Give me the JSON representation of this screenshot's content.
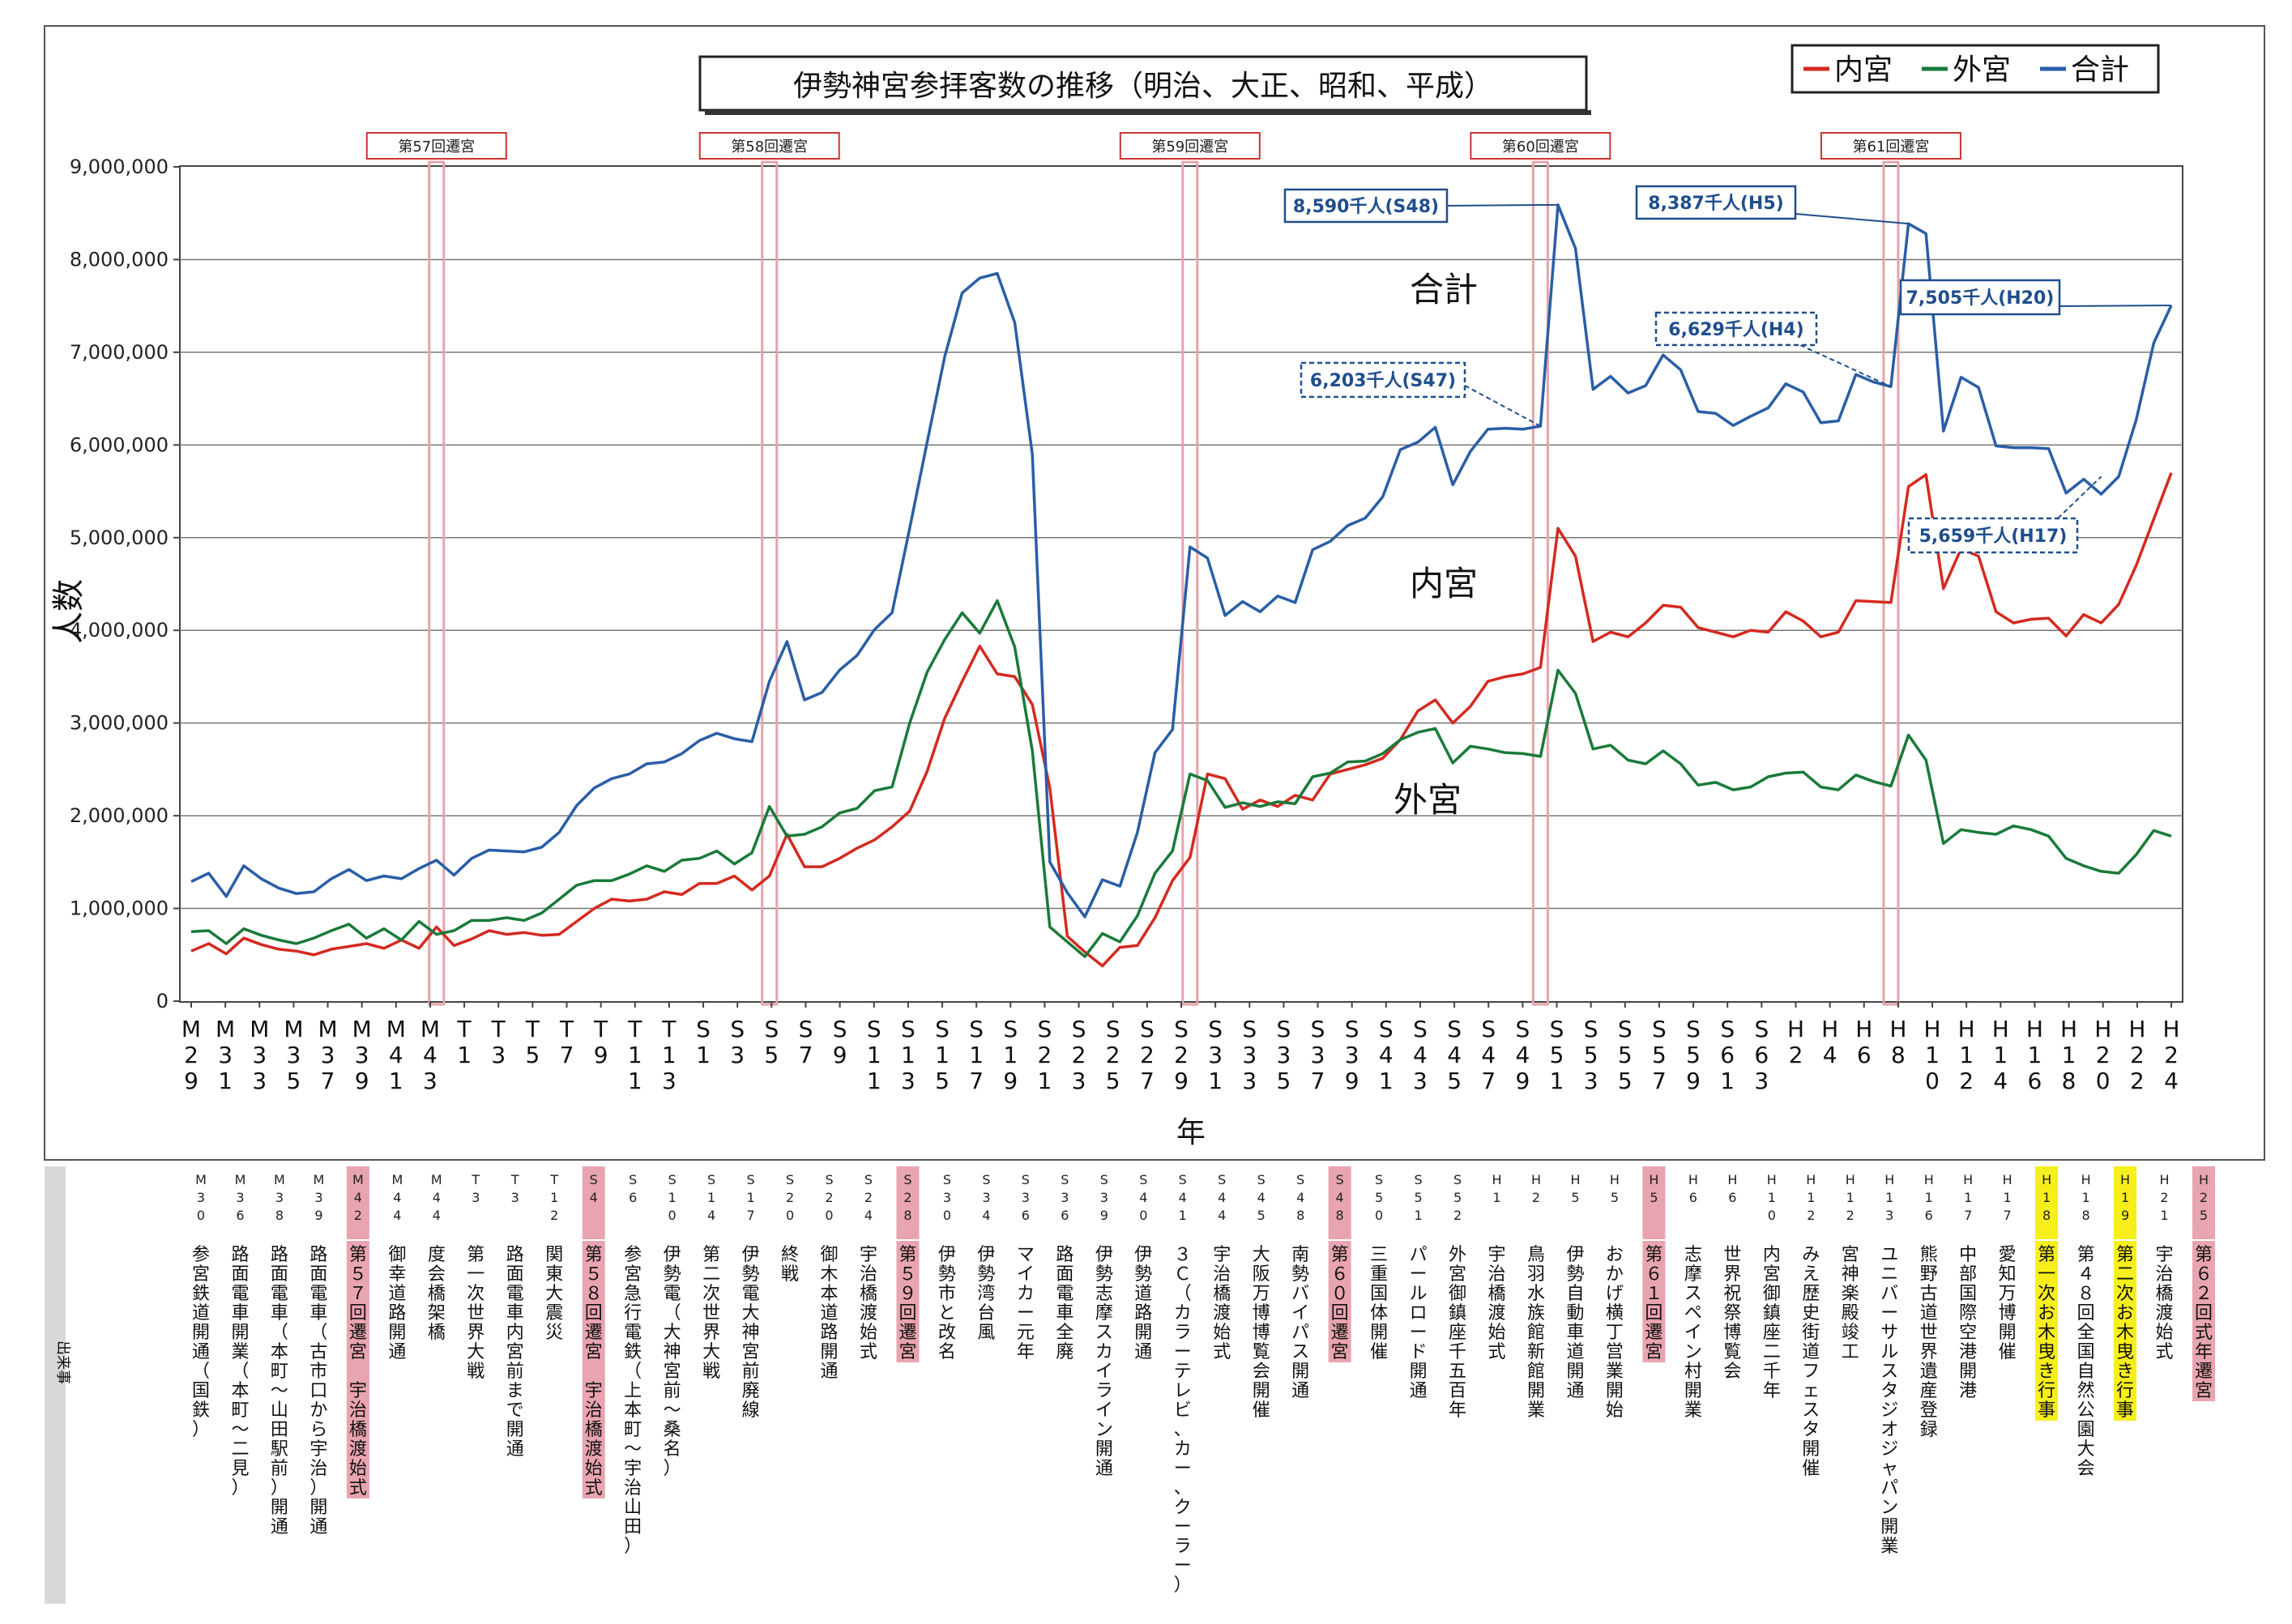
{
  "chart_data": {
    "type": "line",
    "title": "伊勢神宮参拝客数の推移（明治、大正、昭和、平成）",
    "xlabel": "年",
    "ylabel": "人数",
    "ylim": [
      0,
      9000000
    ],
    "yticks": [
      "0",
      "1,000,000",
      "2,000,000",
      "3,000,000",
      "4,000,000",
      "5,000,000",
      "6,000,000",
      "7,000,000",
      "8,000,000",
      "9,000,000"
    ],
    "legend_position": "top-right",
    "grid": true,
    "x_labels": [
      "M29",
      "M31",
      "M33",
      "M35",
      "M37",
      "M39",
      "M41",
      "M43",
      "T1",
      "T3",
      "T5",
      "T7",
      "T9",
      "T11",
      "T13",
      "S1",
      "S3",
      "S5",
      "S7",
      "S9",
      "S11",
      "S13",
      "S15",
      "S17",
      "S19",
      "S21",
      "S23",
      "S25",
      "S27",
      "S29",
      "S31",
      "S33",
      "S35",
      "S37",
      "S39",
      "S41",
      "S43",
      "S45",
      "S47",
      "S49",
      "S51",
      "S53",
      "S55",
      "S57",
      "S59",
      "S61",
      "S63",
      "H2",
      "H4",
      "H6",
      "H8",
      "H10",
      "H12",
      "H14",
      "H16",
      "H18",
      "H20",
      "H22",
      "H24"
    ],
    "series": [
      {
        "name": "内宮",
        "color": "#d42a20",
        "label": "内宮",
        "values": [
          540000,
          620000,
          510000,
          680000,
          610000,
          560000,
          540000,
          500000,
          560000,
          590000,
          620000,
          570000,
          660000,
          570000,
          800000,
          600000,
          670000,
          760000,
          720000,
          740000,
          710000,
          720000,
          860000,
          1000000,
          1100000,
          1080000,
          1100000,
          1180000,
          1150000,
          1270000,
          1270000,
          1350000,
          1200000,
          1350000,
          1800000,
          1450000,
          1450000,
          1540000,
          1650000,
          1740000,
          1880000,
          2050000,
          2480000,
          3050000,
          3450000,
          3830000,
          3530000,
          3500000,
          3200000,
          2300000,
          700000,
          530000,
          380000,
          580000,
          600000,
          900000,
          1300000,
          1550000,
          2450000,
          2400000,
          2070000,
          2170000,
          2100000,
          2220000,
          2170000,
          2450000,
          2500000,
          2550000,
          2620000,
          2820000,
          3130000,
          3250000,
          3000000,
          3180000,
          3450000,
          3500000,
          3530000,
          3600000,
          5100000,
          4800000,
          3880000,
          3980000,
          3930000,
          4080000,
          4270000,
          4250000,
          4030000,
          3980000,
          3930000,
          4000000,
          3980000,
          4200000,
          4100000,
          3930000,
          3980000,
          4320000,
          4310000,
          4300000,
          5550000,
          5680000,
          4450000,
          4880000,
          4800000,
          4200000,
          4080000,
          4120000,
          4130000,
          3940000,
          4170000,
          4080000,
          4280000,
          4700000,
          5200000,
          5700000
        ]
      },
      {
        "name": "外宮",
        "color": "#1a7a3a",
        "label": "外宮",
        "values": [
          750000,
          760000,
          620000,
          780000,
          710000,
          660000,
          620000,
          680000,
          760000,
          830000,
          680000,
          780000,
          660000,
          860000,
          720000,
          760000,
          870000,
          870000,
          900000,
          870000,
          950000,
          1100000,
          1250000,
          1300000,
          1300000,
          1370000,
          1460000,
          1400000,
          1520000,
          1540000,
          1620000,
          1480000,
          1600000,
          2100000,
          1780000,
          1800000,
          1880000,
          2030000,
          2080000,
          2270000,
          2310000,
          3000000,
          3550000,
          3900000,
          4190000,
          3970000,
          4320000,
          3820000,
          2700000,
          800000,
          640000,
          480000,
          730000,
          640000,
          920000,
          1380000,
          1620000,
          2450000,
          2380000,
          2090000,
          2140000,
          2100000,
          2150000,
          2130000,
          2420000,
          2460000,
          2580000,
          2590000,
          2670000,
          2820000,
          2900000,
          2940000,
          2570000,
          2750000,
          2720000,
          2680000,
          2670000,
          2640000,
          3570000,
          3320000,
          2720000,
          2760000,
          2600000,
          2560000,
          2700000,
          2560000,
          2330000,
          2360000,
          2280000,
          2310000,
          2420000,
          2460000,
          2470000,
          2310000,
          2280000,
          2440000,
          2370000,
          2320000,
          2870000,
          2600000,
          1700000,
          1850000,
          1820000,
          1800000,
          1890000,
          1850000,
          1780000,
          1540000,
          1460000,
          1400000,
          1380000,
          1580000,
          1840000,
          1780000
        ]
      },
      {
        "name": "合計",
        "color": "#2a5ea6",
        "label": "合計",
        "values": [
          1290000,
          1380000,
          1130000,
          1460000,
          1320000,
          1220000,
          1160000,
          1180000,
          1320000,
          1420000,
          1300000,
          1350000,
          1320000,
          1430000,
          1520000,
          1360000,
          1540000,
          1630000,
          1620000,
          1610000,
          1660000,
          1820000,
          2110000,
          2300000,
          2400000,
          2450000,
          2560000,
          2580000,
          2670000,
          2810000,
          2890000,
          2830000,
          2800000,
          3450000,
          3880000,
          3250000,
          3330000,
          3570000,
          3730000,
          4010000,
          4190000,
          5100000,
          6030000,
          6950000,
          7640000,
          7800000,
          7850000,
          7320000,
          5900000,
          1500000,
          1170000,
          910000,
          1310000,
          1240000,
          1820000,
          2680000,
          2930000,
          4900000,
          4780000,
          4160000,
          4310000,
          4200000,
          4370000,
          4300000,
          4870000,
          4960000,
          5130000,
          5210000,
          5440000,
          5950000,
          6030000,
          6190000,
          5570000,
          5930000,
          6170000,
          6180000,
          6170000,
          6203000,
          8590000,
          8120000,
          6600000,
          6740000,
          6560000,
          6640000,
          6970000,
          6810000,
          6360000,
          6340000,
          6210000,
          6310000,
          6400000,
          6660000,
          6570000,
          6240000,
          6260000,
          6760000,
          6680000,
          6629000,
          8387000,
          8280000,
          6150000,
          6730000,
          6620000,
          5990000,
          5970000,
          5970000,
          5960000,
          5480000,
          5630000,
          5470000,
          5659000,
          6270000,
          7100000,
          7505000
        ]
      }
    ],
    "series_labels": {
      "total": "合計",
      "naiku": "内宮",
      "geku": "外宮"
    },
    "annotations": {
      "callout_1": "8,590千人(S48)",
      "callout_2": "8,387千人(H5)",
      "callout_3": "7,505千人(H20)",
      "callout_4": "6,629千人(H4)",
      "callout_5": "6,203千人(S47)",
      "callout_6": "5,659千人(H17)"
    },
    "sengu": [
      {
        "label": "第57回遷宮",
        "index": 14
      },
      {
        "label": "第58回遷宮",
        "index": 33
      },
      {
        "label": "第59回遷宮",
        "index": 57
      },
      {
        "label": "第60回遷宮",
        "index": 77
      },
      {
        "label": "第61回遷宮",
        "index": 97
      }
    ]
  },
  "events": {
    "section_label": "出来事",
    "items": [
      {
        "year": "M30",
        "text": "参宮鉄道開通（国鉄）",
        "highlight": ""
      },
      {
        "year": "M36",
        "text": "路面電車開業（本町〜二見）",
        "highlight": ""
      },
      {
        "year": "M38",
        "text": "路面電車（本町〜山田駅前）開通",
        "highlight": ""
      },
      {
        "year": "M39",
        "text": "路面電車（古市口から宇治）開通",
        "highlight": ""
      },
      {
        "year": "M42",
        "text": "第５７回遷宮　宇治橋渡始式",
        "highlight": "pink"
      },
      {
        "year": "M44",
        "text": "御幸道路開通",
        "highlight": ""
      },
      {
        "year": "M44",
        "text": "度会橋架橋",
        "highlight": ""
      },
      {
        "year": "T3",
        "text": "第一次世界大戦",
        "highlight": ""
      },
      {
        "year": "T3",
        "text": "路面電車内宮前まで開通",
        "highlight": ""
      },
      {
        "year": "T12",
        "text": "関東大震災",
        "highlight": ""
      },
      {
        "year": "S4",
        "text": "第５８回遷宮　宇治橋渡始式",
        "highlight": "pink"
      },
      {
        "year": "S6",
        "text": "参宮急行電鉄（上本町〜宇治山田）",
        "highlight": ""
      },
      {
        "year": "S10",
        "text": "伊勢電（大神宮前〜桑名）",
        "highlight": ""
      },
      {
        "year": "S14",
        "text": "第二次世界大戦",
        "highlight": ""
      },
      {
        "year": "S17",
        "text": "伊勢電大神宮前廃線",
        "highlight": ""
      },
      {
        "year": "S20",
        "text": "終戦",
        "highlight": ""
      },
      {
        "year": "S20",
        "text": "御木本道路開通",
        "highlight": ""
      },
      {
        "year": "S24",
        "text": "宇治橋渡始式",
        "highlight": ""
      },
      {
        "year": "S28",
        "text": "第５９回遷宮",
        "highlight": "pink"
      },
      {
        "year": "S30",
        "text": "伊勢市と改名",
        "highlight": ""
      },
      {
        "year": "S34",
        "text": "伊勢湾台風",
        "highlight": ""
      },
      {
        "year": "S36",
        "text": "マイカー元年",
        "highlight": ""
      },
      {
        "year": "S36",
        "text": "路面電車全廃",
        "highlight": ""
      },
      {
        "year": "S39",
        "text": "伊勢志摩スカイライン開通",
        "highlight": ""
      },
      {
        "year": "S40",
        "text": "伊勢道路開通",
        "highlight": ""
      },
      {
        "year": "S41",
        "text": "３Ｃ（カラーテレビ、カー、クーラー）",
        "highlight": ""
      },
      {
        "year": "S44",
        "text": "宇治橋渡始式",
        "highlight": ""
      },
      {
        "year": "S45",
        "text": "大阪万博博覧会開催",
        "highlight": ""
      },
      {
        "year": "S48",
        "text": "南勢バイパス開通",
        "highlight": ""
      },
      {
        "year": "S48",
        "text": "第６０回遷宮",
        "highlight": "pink"
      },
      {
        "year": "S50",
        "text": "三重国体開催",
        "highlight": ""
      },
      {
        "year": "S51",
        "text": "パールロード開通",
        "highlight": ""
      },
      {
        "year": "S52",
        "text": "外宮御鎮座千五百年",
        "highlight": ""
      },
      {
        "year": "H1",
        "text": "宇治橋渡始式",
        "highlight": ""
      },
      {
        "year": "H2",
        "text": "鳥羽水族館新館開業",
        "highlight": ""
      },
      {
        "year": "H5",
        "text": "伊勢自動車道開通",
        "highlight": ""
      },
      {
        "year": "H5",
        "text": "おかげ横丁営業開始",
        "highlight": ""
      },
      {
        "year": "H5",
        "text": "第６１回遷宮",
        "highlight": "pink"
      },
      {
        "year": "H6",
        "text": "志摩スペイン村開業",
        "highlight": ""
      },
      {
        "year": "H6",
        "text": "世界祝祭博覧会",
        "highlight": ""
      },
      {
        "year": "H10",
        "text": "内宮御鎮座二千年",
        "highlight": ""
      },
      {
        "year": "H12",
        "text": "みえ歴史街道フェスタ開催",
        "highlight": ""
      },
      {
        "year": "H12",
        "text": "宮神楽殿竣工",
        "highlight": ""
      },
      {
        "year": "H13",
        "text": "ユニバーサルスタジオジャパン開業",
        "highlight": ""
      },
      {
        "year": "H16",
        "text": "熊野古道世界遺産登録",
        "highlight": ""
      },
      {
        "year": "H17",
        "text": "中部国際空港開港",
        "highlight": ""
      },
      {
        "year": "H17",
        "text": "愛知万博開催",
        "highlight": ""
      },
      {
        "year": "H18",
        "text": "第一次お木曳き行事",
        "highlight": "yellow"
      },
      {
        "year": "H18",
        "text": "第４８回全国自然公園大会",
        "highlight": ""
      },
      {
        "year": "H19",
        "text": "第二次お木曳き行事",
        "highlight": "yellow"
      },
      {
        "year": "H21",
        "text": "宇治橋渡始式",
        "highlight": ""
      },
      {
        "year": "H25",
        "text": "第６２回式年遷宮",
        "highlight": "pink"
      }
    ]
  }
}
